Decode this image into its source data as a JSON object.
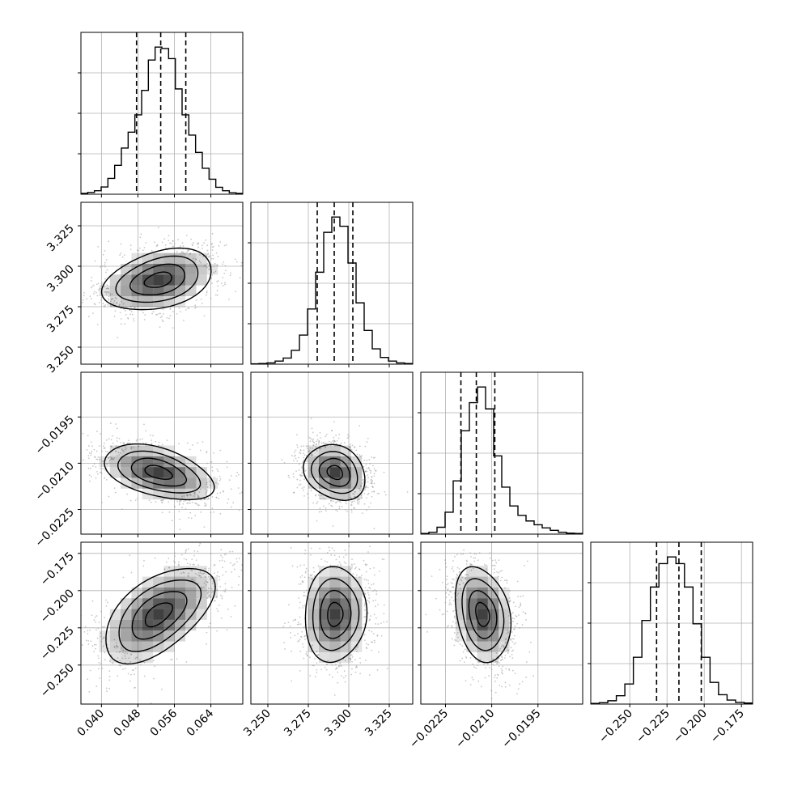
{
  "colors": {
    "frame": "#000000",
    "grid": "#b0b0b0",
    "hist": "#000000",
    "contour": "#000000",
    "density": "#000000",
    "points": "#9a9a9a"
  },
  "chart_data": {
    "type": "corner",
    "grid": true,
    "quantile_lines": "dashed",
    "parameters": [
      {
        "ticks": [
          0.04,
          0.048,
          0.056,
          0.064
        ],
        "tick_labels": [
          "0.040",
          "0.048",
          "0.056",
          "0.064"
        ],
        "range": [
          0.0355,
          0.071
        ],
        "quantiles": [
          0.0477,
          0.053,
          0.0585
        ],
        "hist": [
          3,
          6,
          12,
          25,
          55,
          100,
          160,
          215,
          275,
          360,
          465,
          510,
          505,
          470,
          365,
          275,
          205,
          145,
          90,
          52,
          24,
          12,
          5,
          3
        ]
      },
      {
        "ticks": [
          3.25,
          3.275,
          3.3,
          3.325
        ],
        "tick_labels": [
          "3.250",
          "3.275",
          "3.300",
          "3.325"
        ],
        "range": [
          3.2395,
          3.3395
        ],
        "quantiles": [
          3.2805,
          3.291,
          3.3025
        ],
        "hist": [
          1,
          2,
          4,
          10,
          20,
          45,
          95,
          180,
          300,
          430,
          480,
          450,
          330,
          200,
          110,
          50,
          22,
          10,
          4,
          2
        ]
      },
      {
        "ticks": [
          -0.0225,
          -0.021,
          -0.0195
        ],
        "tick_labels": [
          "−0.0225",
          "−0.0210",
          "−0.0195"
        ],
        "range": [
          -0.0233,
          -0.01805
        ],
        "quantiles": [
          -0.022,
          -0.0215,
          -0.0209
        ],
        "hist": [
          2,
          6,
          22,
          70,
          170,
          330,
          420,
          470,
          400,
          250,
          150,
          90,
          60,
          42,
          30,
          20,
          12,
          6,
          3,
          2
        ]
      },
      {
        "ticks": [
          -0.25,
          -0.225,
          -0.2,
          -0.175
        ],
        "tick_labels": [
          "−0.250",
          "−0.225",
          "−0.200",
          "−0.175"
        ],
        "range": [
          -0.2762,
          -0.1675
        ],
        "quantiles": [
          -0.232,
          -0.217,
          -0.202
        ],
        "hist": [
          2,
          4,
          10,
          25,
          60,
          140,
          250,
          350,
          420,
          440,
          420,
          350,
          240,
          140,
          65,
          28,
          12,
          5,
          3
        ]
      }
    ],
    "pairs": [
      {
        "x": 0,
        "y": 1,
        "center": [
          0.0525,
          3.2915
        ],
        "sigma": [
          0.006,
          0.0095
        ],
        "rho": 0.35
      },
      {
        "x": 0,
        "y": 2,
        "center": [
          0.0525,
          -0.0213
        ],
        "sigma": [
          0.006,
          0.00045
        ],
        "rho": -0.45
      },
      {
        "x": 1,
        "y": 2,
        "center": [
          3.2915,
          -0.0213
        ],
        "sigma": [
          0.0095,
          0.00045
        ],
        "rho": -0.2
      },
      {
        "x": 0,
        "y": 3,
        "center": [
          0.0525,
          -0.216
        ],
        "sigma": [
          0.006,
          0.016
        ],
        "rho": 0.55
      },
      {
        "x": 1,
        "y": 3,
        "center": [
          3.2915,
          -0.216
        ],
        "sigma": [
          0.0095,
          0.016
        ],
        "rho": 0.05
      },
      {
        "x": 2,
        "y": 3,
        "center": [
          -0.0213,
          -0.216
        ],
        "sigma": [
          0.00045,
          0.016
        ],
        "rho": -0.25
      }
    ],
    "contour_levels": [
      0.5,
      1.0,
      1.5,
      2.0
    ]
  }
}
